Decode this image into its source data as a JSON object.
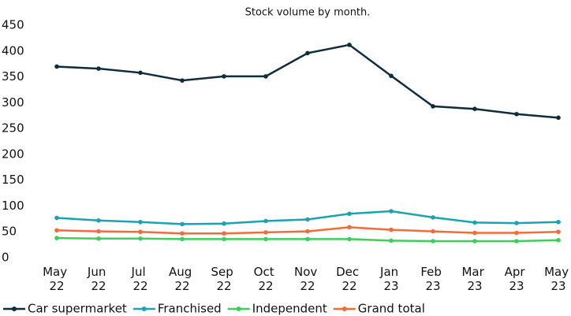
{
  "chart_data": {
    "type": "line",
    "title": "Stock volume by month.",
    "categories": [
      "May 22",
      "Jun 22",
      "Jul 22",
      "Aug 22",
      "Sep 22",
      "Oct 22",
      "Nov 22",
      "Dec 22",
      "Jan 23",
      "Feb 23",
      "Mar 23",
      "Apr 23",
      "May 23"
    ],
    "series": [
      {
        "name": "Car supermarket",
        "color": "#0d2d3f",
        "values": [
          370,
          366,
          358,
          343,
          351,
          351,
          396,
          412,
          352,
          293,
          288,
          278,
          271
        ]
      },
      {
        "name": "Franchised",
        "color": "#1aa3b0",
        "values": [
          77,
          72,
          69,
          65,
          66,
          71,
          74,
          85,
          90,
          78,
          68,
          67,
          69
        ]
      },
      {
        "name": "Independent",
        "color": "#3ecf5a",
        "values": [
          38,
          37,
          37,
          36,
          36,
          36,
          36,
          36,
          33,
          32,
          32,
          32,
          34
        ]
      },
      {
        "name": "Grand total",
        "color": "#f26c3a",
        "values": [
          53,
          51,
          50,
          47,
          47,
          49,
          51,
          59,
          54,
          51,
          48,
          48,
          50
        ]
      }
    ],
    "ylim": [
      0,
      450
    ],
    "yticks": [
      0,
      50,
      100,
      150,
      200,
      250,
      300,
      350,
      400,
      450
    ],
    "grid": false,
    "legend": "bottom"
  }
}
